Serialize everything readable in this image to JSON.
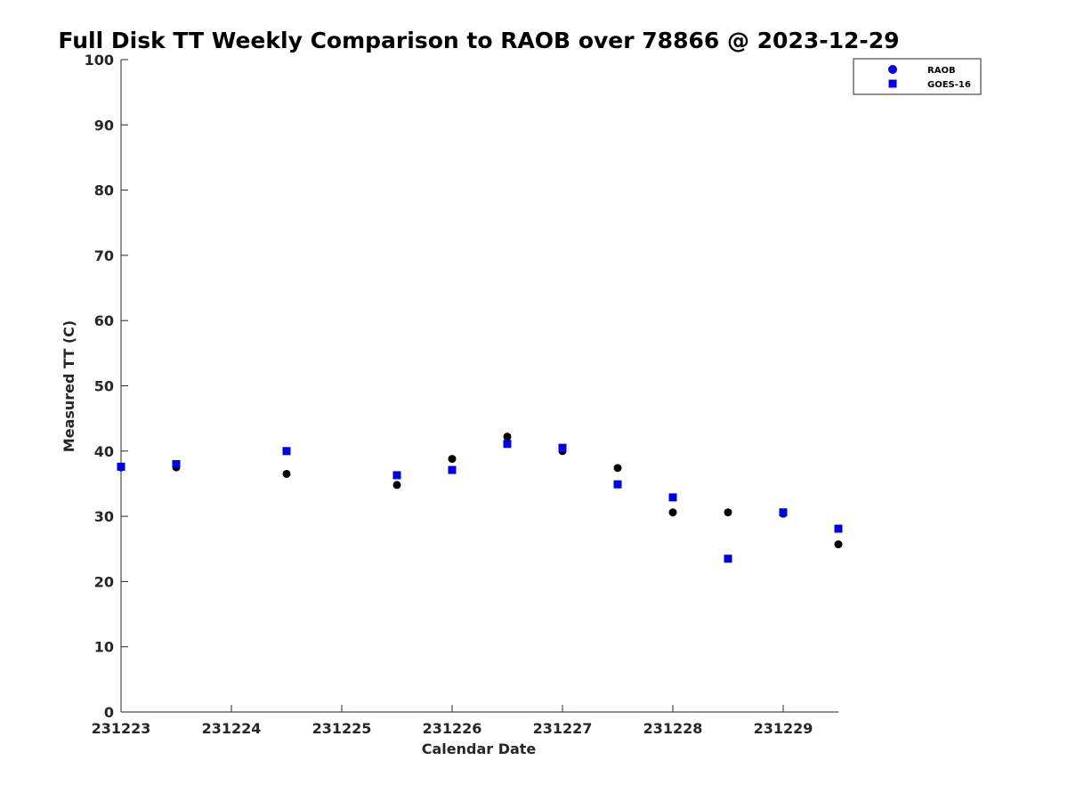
{
  "chart_data": {
    "type": "scatter",
    "title": "Full Disk TT Weekly Comparison to RAOB over 78866 @ 2023-12-29",
    "xlabel": "Calendar Date",
    "ylabel": "Measured TT (C)",
    "xlim": [
      0,
      6.5
    ],
    "ylim": [
      0,
      100
    ],
    "x_ticks": [
      0,
      1,
      2,
      3,
      4,
      5,
      6
    ],
    "x_tick_labels": [
      "231223",
      "231224",
      "231225",
      "231226",
      "231227",
      "231228",
      "231229"
    ],
    "y_ticks": [
      0,
      10,
      20,
      30,
      40,
      50,
      60,
      70,
      80,
      90,
      100
    ],
    "y_tick_labels": [
      "0",
      "10",
      "20",
      "30",
      "40",
      "50",
      "60",
      "70",
      "80",
      "90",
      "100"
    ],
    "grid": false,
    "legend_position": "top-right",
    "series": [
      {
        "name": "RAOB",
        "marker": "circle",
        "color": "#000000",
        "legend_color": "#0000e6",
        "x": [
          0,
          0.5,
          1.5,
          2.5,
          3,
          3.5,
          4,
          4.5,
          5,
          5.5,
          6,
          6.5
        ],
        "y": [
          37.5,
          37.5,
          36.5,
          34.8,
          38.8,
          42.2,
          40.0,
          37.4,
          30.6,
          30.6,
          30.4,
          25.7
        ]
      },
      {
        "name": "GOES-16",
        "marker": "square",
        "color": "#0000e6",
        "legend_color": "#0000e6",
        "x": [
          0,
          0.5,
          1.5,
          2.5,
          3,
          3.5,
          4,
          4.5,
          5,
          5.5,
          6,
          6.5
        ],
        "y": [
          37.6,
          38.0,
          40.0,
          36.3,
          37.1,
          41.1,
          40.5,
          34.9,
          32.9,
          23.5,
          30.6,
          28.1
        ]
      }
    ]
  }
}
